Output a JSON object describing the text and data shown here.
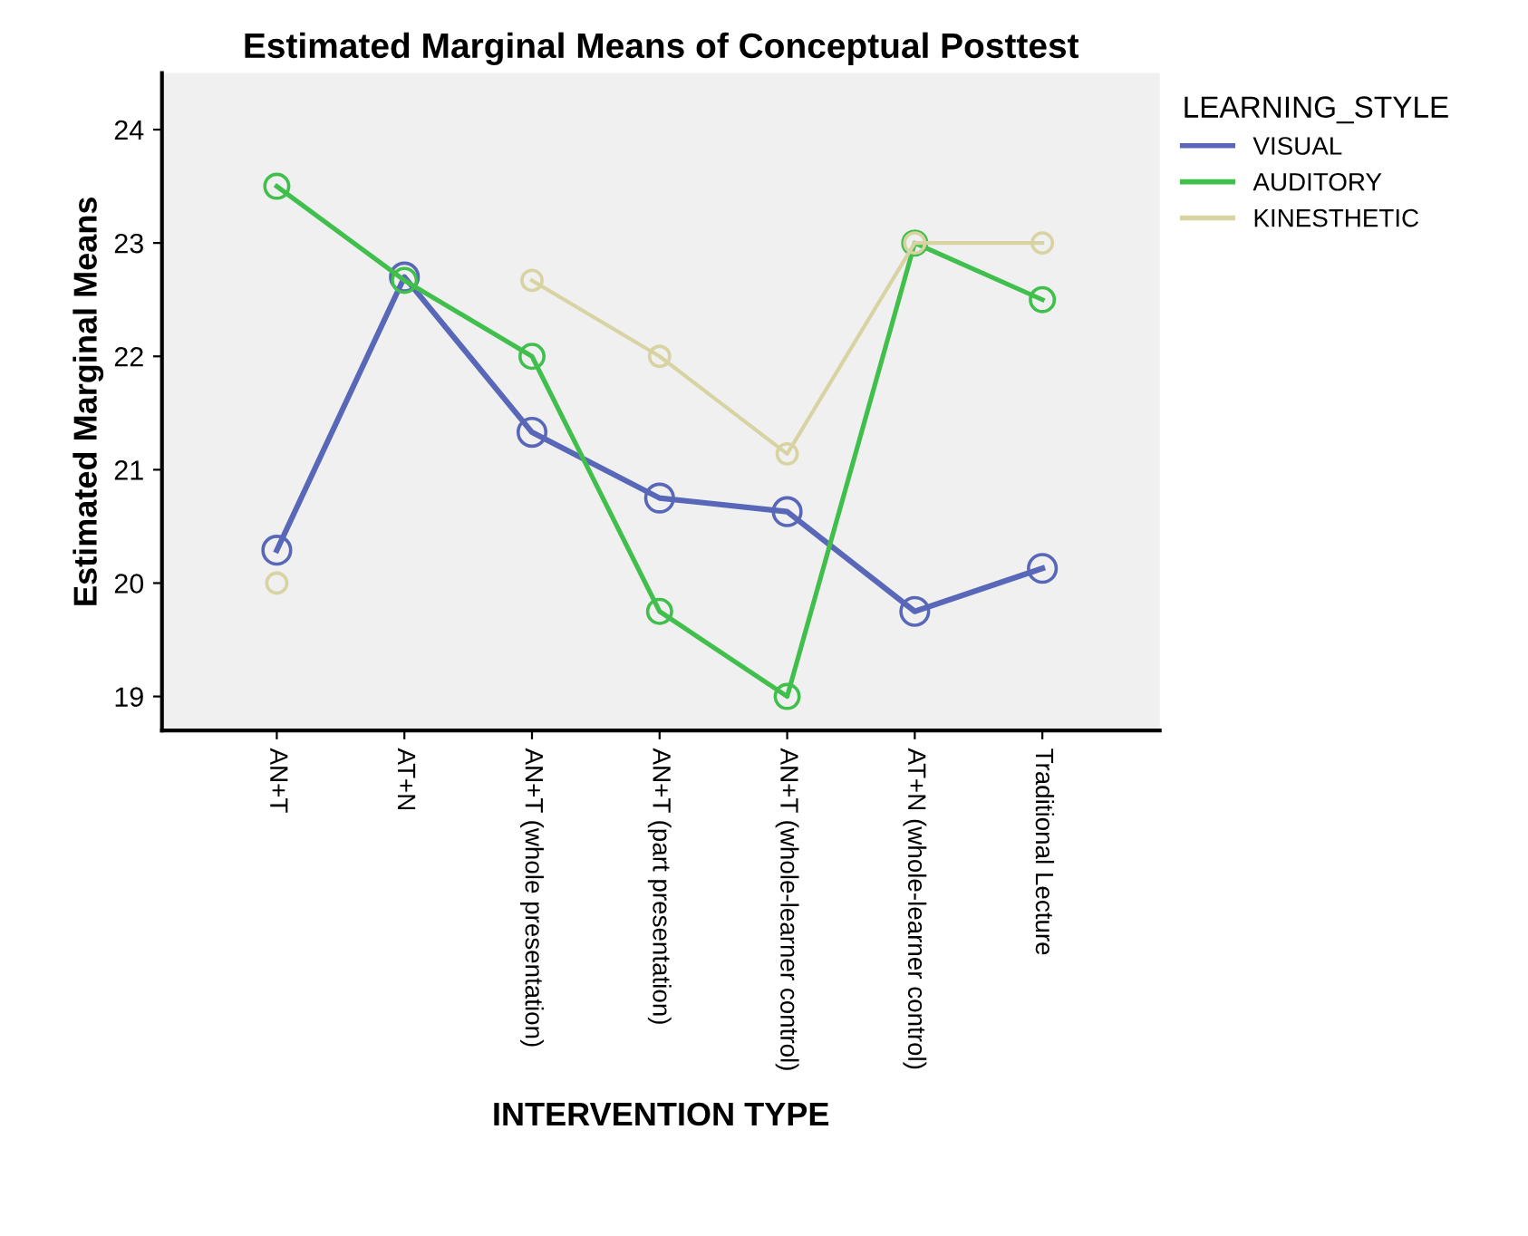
{
  "chart_data": {
    "type": "line",
    "title": "Estimated Marginal Means of Conceptual Posttest",
    "xlabel": "INTERVENTION TYPE",
    "ylabel": "Estimated Marginal Means",
    "legend_title": "LEARNING_STYLE",
    "legend": "top right",
    "categories": [
      "AN+T",
      "AT+N",
      "AN+T (whole presentation)",
      "AN+T (part presentation)",
      "AN+T (whole-learner control)",
      "AT+N (whole-learner control)",
      "Traditional Lecture"
    ],
    "series": [
      {
        "name": "VISUAL",
        "color": "#5867b8",
        "values": [
          20.29,
          22.7,
          21.33,
          20.75,
          20.63,
          19.75,
          20.13
        ]
      },
      {
        "name": "AUDITORY",
        "color": "#40bf4c",
        "values": [
          23.5,
          22.67,
          22.0,
          19.75,
          19.0,
          23.0,
          22.5
        ]
      },
      {
        "name": "KINESTHETIC",
        "color": "#d8d3a2",
        "values": [
          20.0,
          null,
          22.67,
          22.0,
          21.14,
          23.0,
          23.0
        ]
      }
    ],
    "ylim": [
      18.7,
      24.5
    ],
    "yticks": [
      19,
      20,
      21,
      22,
      23,
      24
    ],
    "grid": false,
    "marker": "circle",
    "line_style": "solid"
  }
}
